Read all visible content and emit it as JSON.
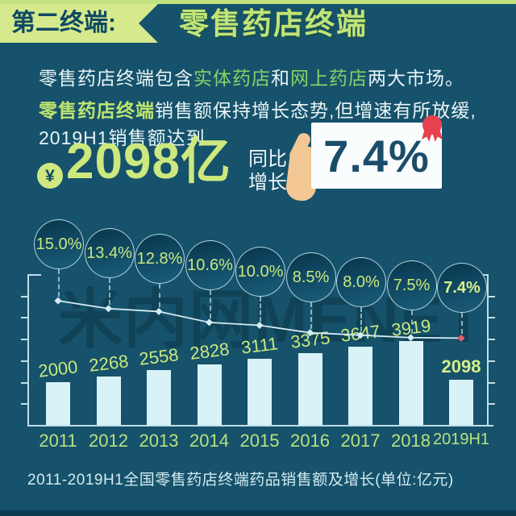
{
  "colors": {
    "background": "#16526b",
    "accent_green": "#c9e87f",
    "bright_green": "#84d468",
    "badge_bg": "#d6e98c",
    "bar_fill": "#d9f2f8",
    "axis": "#bfdfe9",
    "card_text": "#1b4d6a",
    "ribbon_red": "#e8414f",
    "hand_tan": "#f3c794",
    "line": "#d6ecf4",
    "last_point": "#e4606e"
  },
  "header": {
    "badge_label": "第二终端:",
    "title": "零售药店终端"
  },
  "intro": {
    "p1": {
      "s1": "零售药店终端包含",
      "s2": "实体药店",
      "s3": "和",
      "s4": "网上药店",
      "s5": "两大市场。"
    },
    "p2": {
      "s1": "零售药店终端",
      "s2": "销售额保持增长态势,但增速有所放缓,"
    },
    "p3": "2019H1销售额达到"
  },
  "highlight": {
    "currency": "¥",
    "amount": "2098亿",
    "yoy_line1": "同比",
    "yoy_line2": "增长",
    "growth": "7.4%"
  },
  "watermark": "米内网MENET",
  "chart_data": {
    "type": "bar",
    "categories": [
      "2011",
      "2012",
      "2013",
      "2014",
      "2015",
      "2016",
      "2017",
      "2018",
      "2019H1"
    ],
    "series": [
      {
        "name": "销售额(亿元)",
        "type": "bar",
        "values": [
          2000,
          2268,
          2558,
          2828,
          3111,
          3375,
          3647,
          3919,
          2098
        ]
      },
      {
        "name": "同比增长(%)",
        "type": "line",
        "values": [
          15.0,
          13.4,
          12.8,
          10.6,
          10.0,
          8.5,
          8.0,
          7.5,
          7.4
        ]
      }
    ],
    "bar_value_labels": [
      "2000",
      "2268",
      "2558",
      "2828",
      "3111",
      "3375",
      "3647",
      "3919",
      "2098"
    ],
    "growth_labels": [
      "15.0%",
      "13.4%",
      "12.8%",
      "10.6%",
      "10.0%",
      "8.5%",
      "8.0%",
      "7.5%",
      "7.4%"
    ],
    "title": "2011-2019H1全国零售药店终端药品销售额及增长(单位:亿元)",
    "xlabel": "",
    "ylabel": "",
    "grid": false,
    "legend_position": "none"
  }
}
